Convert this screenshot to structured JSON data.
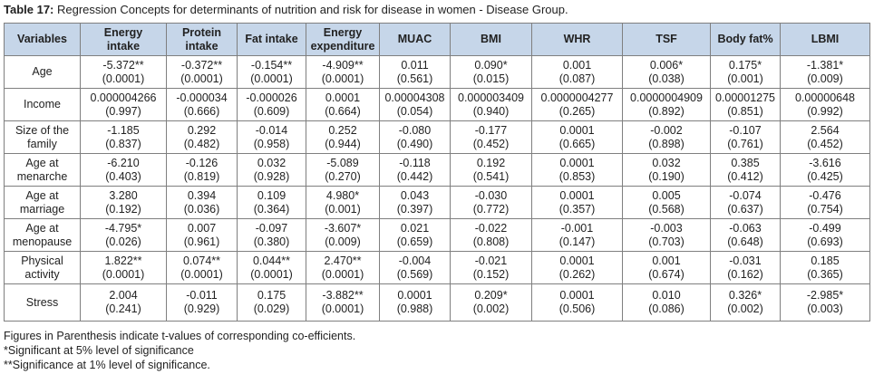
{
  "caption": {
    "label": "Table 17:",
    "text": " Regression Concepts for determinants of nutrition and risk for disease in women - Disease Group."
  },
  "table": {
    "corner_header": "Variables",
    "columns": [
      [
        "Energy",
        "intake"
      ],
      [
        "Protein",
        "intake"
      ],
      [
        "Fat intake"
      ],
      [
        "Energy",
        "expenditure"
      ],
      [
        "MUAC"
      ],
      [
        "BMI"
      ],
      [
        "WHR"
      ],
      [
        "TSF"
      ],
      [
        "Body fat%"
      ],
      [
        "LBMI"
      ]
    ],
    "rows": [
      {
        "label": [
          "Age"
        ],
        "cells": [
          [
            "-5.372**",
            "(0.0001)"
          ],
          [
            "-0.372**",
            "(0.0001)"
          ],
          [
            "-0.154**",
            "(0.0001)"
          ],
          [
            "-4.909**",
            "(0.0001)"
          ],
          [
            "0.011",
            "(0.561)"
          ],
          [
            "0.090*",
            "(0.015)"
          ],
          [
            "0.001",
            "(0.087)"
          ],
          [
            "0.006*",
            "(0.038)"
          ],
          [
            "0.175*",
            "(0.001)"
          ],
          [
            "-1.381*",
            "(0.009)"
          ]
        ]
      },
      {
        "label": [
          "Income"
        ],
        "cells": [
          [
            "0.000004266",
            "(0.997)"
          ],
          [
            "-0.000034",
            "(0.666)"
          ],
          [
            "-0.000026",
            "(0.609)"
          ],
          [
            "0.0001",
            "(0.664)"
          ],
          [
            "0.00004308",
            "(0.054)"
          ],
          [
            "0.000003409",
            "(0.940)"
          ],
          [
            "0.0000004277",
            "(0.265)"
          ],
          [
            "0.0000004909",
            "(0.892)"
          ],
          [
            "0.00001275",
            "(0.851)"
          ],
          [
            "0.00000648",
            "(0.992)"
          ]
        ]
      },
      {
        "label": [
          "Size of the",
          "family"
        ],
        "cells": [
          [
            "-1.185",
            "(0.837)"
          ],
          [
            "0.292",
            "(0.482)"
          ],
          [
            "-0.014",
            "(0.958)"
          ],
          [
            "0.252",
            "(0.944)"
          ],
          [
            "-0.080",
            "(0.490)"
          ],
          [
            "-0.177",
            "(0.452)"
          ],
          [
            "0.0001",
            "(0.665)"
          ],
          [
            "-0.002",
            "(0.898)"
          ],
          [
            "-0.107",
            "(0.761)"
          ],
          [
            "2.564",
            "(0.452)"
          ]
        ]
      },
      {
        "label": [
          "Age at",
          "menarche"
        ],
        "cells": [
          [
            "-6.210",
            "(0.403)"
          ],
          [
            "-0.126",
            "(0.819)"
          ],
          [
            "0.032",
            "(0.928)"
          ],
          [
            "-5.089",
            "(0.270)"
          ],
          [
            "-0.118",
            "(0.442)"
          ],
          [
            "0.192",
            "(0.541)"
          ],
          [
            "0.0001",
            "(0.853)"
          ],
          [
            "0.032",
            "(0.190)"
          ],
          [
            "0.385",
            "(0.412)"
          ],
          [
            "-3.616",
            "(0.425)"
          ]
        ]
      },
      {
        "label": [
          "Age at",
          "marriage"
        ],
        "cells": [
          [
            "3.280",
            "(0.192)"
          ],
          [
            "0.394",
            "(0.036)"
          ],
          [
            "0.109",
            "(0.364)"
          ],
          [
            "4.980*",
            "(0.001)"
          ],
          [
            "0.043",
            "(0.397)"
          ],
          [
            "-0.030",
            "(0.772)"
          ],
          [
            "0.0001",
            "(0.357)"
          ],
          [
            "0.005",
            "(0.568)"
          ],
          [
            "-0.074",
            "(0.637)"
          ],
          [
            "-0.476",
            "(0.754)"
          ]
        ]
      },
      {
        "label": [
          "Age at",
          "menopause"
        ],
        "cells": [
          [
            "-4.795*",
            "(0.026)"
          ],
          [
            "0.007",
            "(0.961)"
          ],
          [
            "-0.097",
            "(0.380)"
          ],
          [
            "-3.607*",
            "(0.009)"
          ],
          [
            "0.021",
            "(0.659)"
          ],
          [
            "-0.022",
            "(0.808)"
          ],
          [
            "-0.001",
            "(0.147)"
          ],
          [
            "-0.003",
            "(0.703)"
          ],
          [
            "-0.063",
            "(0.648)"
          ],
          [
            "-0.499",
            "(0.693)"
          ]
        ]
      },
      {
        "label": [
          "Physical",
          "activity"
        ],
        "cells": [
          [
            "1.822**",
            "(0.0001)"
          ],
          [
            "0.074**",
            "(0.0001)"
          ],
          [
            "0.044**",
            "(0.0001)"
          ],
          [
            "2.470**",
            "(0.0001)"
          ],
          [
            "-0.004",
            "(0.569)"
          ],
          [
            "-0.021",
            "(0.152)"
          ],
          [
            "0.0001",
            "(0.262)"
          ],
          [
            "0.001",
            "(0.674)"
          ],
          [
            "-0.031",
            "(0.162)"
          ],
          [
            "0.185",
            "(0.365)"
          ]
        ]
      },
      {
        "label": [
          "Stress"
        ],
        "cells": [
          [
            "2.004",
            "(0.241)"
          ],
          [
            "-0.011",
            "(0.929)"
          ],
          [
            "0.175",
            "(0.029)"
          ],
          [
            "-3.882**",
            "(0.0001)"
          ],
          [
            "0.0001",
            "(0.988)"
          ],
          [
            "0.209*",
            "(0.002)"
          ],
          [
            "0.0001",
            "(0.506)"
          ],
          [
            "0.010",
            "(0.086)"
          ],
          [
            "0.326*",
            "(0.002)"
          ],
          [
            "-2.985*",
            "(0.003)"
          ]
        ]
      }
    ]
  },
  "footnotes": [
    "Figures in Parenthesis indicate t-values of corresponding co-efficients.",
    "*Significant at 5% level of significance",
    "**Significance at 1% level of significance."
  ],
  "colors": {
    "header_background": "#c6d6e9",
    "border": "#7f7f7f",
    "text": "#222222"
  }
}
